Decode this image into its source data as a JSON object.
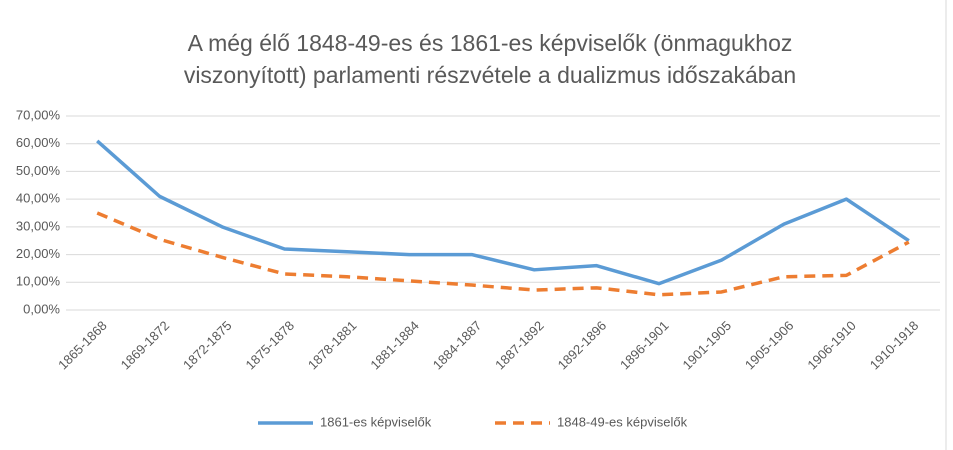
{
  "chart_data": {
    "type": "line",
    "title": [
      "A még élő 1848-49-es és 1861-es képviselők (önmagukhoz",
      "viszonyított) parlamenti részvétele a dualizmus időszakában"
    ],
    "categories": [
      "1865-1868",
      "1869-1872",
      "1872-1875",
      "1875-1878",
      "1878-1881",
      "1881-1884",
      "1884-1887",
      "1887-1892",
      "1892-1896",
      "1896-1901",
      "1901-1905",
      "1905-1906",
      "1906-1910",
      "1910-1918"
    ],
    "series": [
      {
        "name": "1861-es képviselők",
        "color": "#5b9bd5",
        "dash": false,
        "values": [
          61,
          41,
          30,
          22,
          21,
          20,
          20,
          14.5,
          16,
          9.5,
          18,
          31,
          40,
          25
        ]
      },
      {
        "name": "1848-49-es képviselők",
        "color": "#ed7d31",
        "dash": true,
        "values": [
          35,
          25.5,
          19,
          13,
          12,
          10.5,
          9,
          7.2,
          8,
          5.5,
          6.5,
          12,
          12.5,
          24.5
        ]
      }
    ],
    "ylim": [
      0,
      70
    ],
    "yticks": [
      {
        "value": 0,
        "label": "0,00%"
      },
      {
        "value": 10,
        "label": "10,00%"
      },
      {
        "value": 20,
        "label": "20,00%"
      },
      {
        "value": 30,
        "label": "30,00%"
      },
      {
        "value": 40,
        "label": "40,00%"
      },
      {
        "value": 50,
        "label": "50,00%"
      },
      {
        "value": 60,
        "label": "60,00%"
      },
      {
        "value": 70,
        "label": "70,00%"
      }
    ],
    "grid": true,
    "legend": "bottom"
  }
}
